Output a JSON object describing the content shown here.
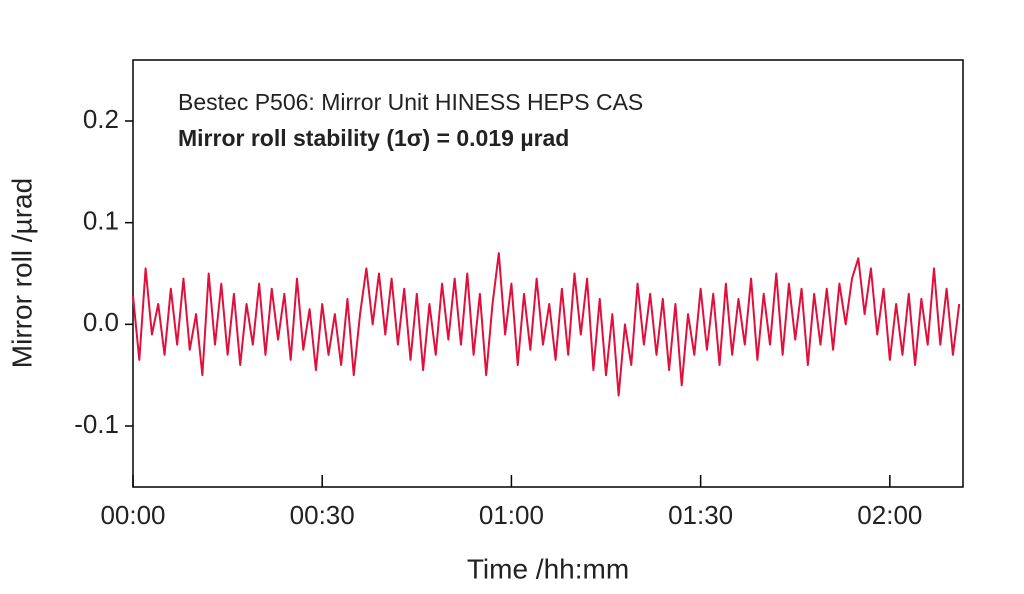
{
  "chart_data": {
    "type": "line",
    "annotations": [
      "Bestec P506: Mirror Unit HINESS HEPS CAS",
      "Mirror roll stability (1σ) = 0.019 µrad"
    ],
    "xlabel": "Time /hh:mm",
    "ylabel": "Mirror roll /µrad",
    "xlim": [
      0,
      131.6
    ],
    "ylim": [
      -0.16,
      0.26
    ],
    "xticks": [
      {
        "value": 0,
        "label": "00:00"
      },
      {
        "value": 30,
        "label": "00:30"
      },
      {
        "value": 60,
        "label": "01:00"
      },
      {
        "value": 90,
        "label": "01:30"
      },
      {
        "value": 120,
        "label": "02:00"
      }
    ],
    "yticks": [
      -0.1,
      {
        "value": 0,
        "label": "0.0"
      },
      0.1,
      0.2
    ],
    "x": [
      0,
      1,
      2,
      3,
      4,
      5,
      6,
      7,
      8,
      9,
      10,
      11,
      12,
      13,
      14,
      15,
      16,
      17,
      18,
      19,
      20,
      21,
      22,
      23,
      24,
      25,
      26,
      27,
      28,
      29,
      30,
      31,
      32,
      33,
      34,
      35,
      36,
      37,
      38,
      39,
      40,
      41,
      42,
      43,
      44,
      45,
      46,
      47,
      48,
      49,
      50,
      51,
      52,
      53,
      54,
      55,
      56,
      57,
      58,
      59,
      60,
      61,
      62,
      63,
      64,
      65,
      66,
      67,
      68,
      69,
      70,
      71,
      72,
      73,
      74,
      75,
      76,
      77,
      78,
      79,
      80,
      81,
      82,
      83,
      84,
      85,
      86,
      87,
      88,
      89,
      90,
      91,
      92,
      93,
      94,
      95,
      96,
      97,
      98,
      99,
      100,
      101,
      102,
      103,
      104,
      105,
      106,
      107,
      108,
      109,
      110,
      111,
      112,
      113,
      114,
      115,
      116,
      117,
      118,
      119,
      120,
      121,
      122,
      123,
      124,
      125,
      126,
      127,
      128,
      129,
      130,
      131
    ],
    "series": [
      {
        "color": "#e0103c",
        "values": [
          0.028,
          -0.035,
          0.055,
          -0.01,
          0.02,
          -0.03,
          0.035,
          -0.02,
          0.045,
          -0.025,
          0.01,
          -0.05,
          0.05,
          -0.02,
          0.04,
          -0.03,
          0.03,
          -0.04,
          0.02,
          -0.02,
          0.04,
          -0.03,
          0.035,
          -0.015,
          0.03,
          -0.035,
          0.045,
          -0.025,
          0.015,
          -0.045,
          0.02,
          -0.03,
          0.01,
          -0.04,
          0.025,
          -0.05,
          0.01,
          0.055,
          0.0,
          0.05,
          -0.01,
          0.045,
          -0.02,
          0.035,
          -0.035,
          0.03,
          -0.045,
          0.02,
          -0.03,
          0.04,
          -0.015,
          0.045,
          -0.02,
          0.05,
          -0.03,
          0.03,
          -0.05,
          0.02,
          0.07,
          -0.01,
          0.04,
          -0.04,
          0.03,
          -0.025,
          0.045,
          -0.02,
          0.02,
          -0.035,
          0.035,
          -0.03,
          0.05,
          -0.01,
          0.045,
          -0.045,
          0.025,
          -0.05,
          0.01,
          -0.07,
          0.0,
          -0.04,
          0.04,
          -0.02,
          0.03,
          -0.03,
          0.025,
          -0.045,
          0.02,
          -0.06,
          0.01,
          -0.03,
          0.035,
          -0.025,
          0.03,
          -0.04,
          0.04,
          -0.03,
          0.025,
          -0.02,
          0.045,
          -0.035,
          0.03,
          -0.02,
          0.05,
          -0.03,
          0.04,
          -0.015,
          0.035,
          -0.04,
          0.03,
          -0.02,
          0.035,
          -0.025,
          0.04,
          0.0,
          0.045,
          0.065,
          0.01,
          0.055,
          -0.01,
          0.035,
          -0.035,
          0.02,
          -0.03,
          0.03,
          -0.04,
          0.025,
          -0.02,
          0.055,
          -0.02,
          0.035,
          -0.03,
          0.02
        ]
      }
    ]
  }
}
